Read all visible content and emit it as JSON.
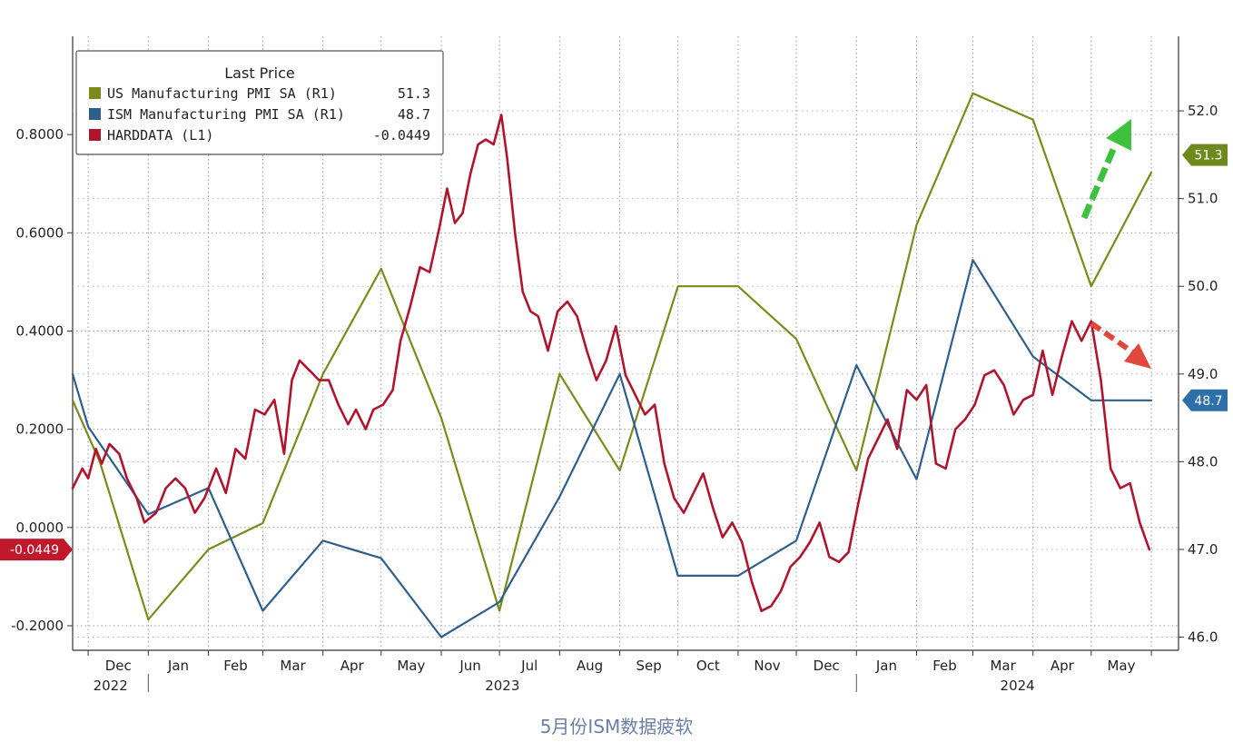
{
  "caption": "5月份ISM数据疲软",
  "colors": {
    "us_pmi": "#7b8a1a",
    "ism_pmi": "#2d5f8c",
    "harddata": "#b0152d",
    "green_arrow": "#3ec13e",
    "red_arrow": "#e2473e",
    "badge_red": "#c0192c",
    "badge_blue": "#2d6fa8",
    "badge_green": "#6e8a1c"
  },
  "legend": {
    "title": "Last Price",
    "items": [
      {
        "label": "US Manufacturing PMI SA  (R1)",
        "value": "51.3",
        "color": "#7b8a1a"
      },
      {
        "label": "ISM Manufacturing PMI SA (R1)",
        "value": "48.7",
        "color": "#2d5f8c"
      },
      {
        "label": "HARDDATA (L1)",
        "value": "-0.0449",
        "color": "#b0152d"
      }
    ]
  },
  "badges": {
    "left": "-0.0449",
    "right_green": "51.3",
    "right_blue": "48.7"
  },
  "chart_data": {
    "type": "line",
    "title": "",
    "x_axis": {
      "unit": "month",
      "start": "2022-11-23",
      "end": "2024-06-15",
      "month_labels": [
        "Dec",
        "Jan",
        "Feb",
        "Mar",
        "Apr",
        "May",
        "Jun",
        "Jul",
        "Aug",
        "Sep",
        "Oct",
        "Nov",
        "Dec",
        "Jan",
        "Feb",
        "Mar",
        "Apr",
        "May"
      ],
      "year_labels": [
        "2022",
        "2023",
        "2024"
      ]
    },
    "y_left": {
      "min": -0.25,
      "max": 1.0,
      "ticks": [
        -0.2,
        0.0,
        0.2,
        0.4,
        0.6,
        0.8
      ],
      "tick_labels": [
        "-0.2000",
        "0.0000",
        "0.2000",
        "0.4000",
        "0.6000",
        "0.8000"
      ]
    },
    "y_right": {
      "min": 45.85,
      "max": 52.85,
      "ticks": [
        46.0,
        47.0,
        48.0,
        49.0,
        50.0,
        51.0,
        52.0
      ],
      "tick_labels": [
        "46.0",
        "47.0",
        "48.0",
        "49.0",
        "50.0",
        "51.0",
        "52.0"
      ]
    },
    "grid": true,
    "legend_position": "top-left",
    "series": [
      {
        "name": "US Manufacturing PMI SA (R1)",
        "axis": "right",
        "points": [
          [
            "2022-11-23",
            48.7
          ],
          [
            "2022-12-07",
            48.0
          ],
          [
            "2023-01-01",
            46.2
          ],
          [
            "2023-02-01",
            47.0
          ],
          [
            "2023-03-01",
            47.3
          ],
          [
            "2023-04-01",
            49.0
          ],
          [
            "2023-05-01",
            50.2
          ],
          [
            "2023-06-01",
            48.5
          ],
          [
            "2023-07-01",
            46.3
          ],
          [
            "2023-08-01",
            49.0
          ],
          [
            "2023-09-01",
            47.9
          ],
          [
            "2023-10-01",
            50.0
          ],
          [
            "2023-11-01",
            50.0
          ],
          [
            "2023-12-01",
            49.4
          ],
          [
            "2024-01-01",
            47.9
          ],
          [
            "2024-02-01",
            50.7
          ],
          [
            "2024-03-01",
            52.2
          ],
          [
            "2024-04-01",
            51.9
          ],
          [
            "2024-05-01",
            50.0
          ],
          [
            "2024-06-01",
            51.3
          ]
        ]
      },
      {
        "name": "ISM Manufacturing PMI SA (R1)",
        "axis": "right",
        "points": [
          [
            "2022-11-23",
            49.0
          ],
          [
            "2022-12-01",
            48.4
          ],
          [
            "2023-01-01",
            47.4
          ],
          [
            "2023-02-01",
            47.7
          ],
          [
            "2023-03-01",
            46.3
          ],
          [
            "2023-04-01",
            47.1
          ],
          [
            "2023-05-01",
            46.9
          ],
          [
            "2023-06-01",
            46.0
          ],
          [
            "2023-07-01",
            46.4
          ],
          [
            "2023-08-01",
            47.6
          ],
          [
            "2023-09-01",
            49.0
          ],
          [
            "2023-10-01",
            46.7
          ],
          [
            "2023-11-01",
            46.7
          ],
          [
            "2023-12-01",
            47.1
          ],
          [
            "2024-01-01",
            49.1
          ],
          [
            "2024-02-01",
            47.8
          ],
          [
            "2024-03-01",
            50.3
          ],
          [
            "2024-04-01",
            49.2
          ],
          [
            "2024-05-01",
            48.7
          ],
          [
            "2024-06-01",
            48.7
          ]
        ]
      },
      {
        "name": "HARDDATA (L1)",
        "axis": "left",
        "points": [
          [
            "2022-11-23",
            0.08
          ],
          [
            "2022-11-28",
            0.12
          ],
          [
            "2022-12-01",
            0.1
          ],
          [
            "2022-12-05",
            0.16
          ],
          [
            "2022-12-08",
            0.13
          ],
          [
            "2022-12-12",
            0.17
          ],
          [
            "2022-12-17",
            0.15
          ],
          [
            "2022-12-21",
            0.1
          ],
          [
            "2022-12-26",
            0.06
          ],
          [
            "2022-12-30",
            0.01
          ],
          [
            "2023-01-05",
            0.03
          ],
          [
            "2023-01-10",
            0.08
          ],
          [
            "2023-01-15",
            0.1
          ],
          [
            "2023-01-20",
            0.08
          ],
          [
            "2023-01-25",
            0.03
          ],
          [
            "2023-01-30",
            0.06
          ],
          [
            "2023-02-05",
            0.12
          ],
          [
            "2023-02-10",
            0.07
          ],
          [
            "2023-02-15",
            0.16
          ],
          [
            "2023-02-20",
            0.14
          ],
          [
            "2023-02-25",
            0.24
          ],
          [
            "2023-03-02",
            0.23
          ],
          [
            "2023-03-07",
            0.26
          ],
          [
            "2023-03-12",
            0.15
          ],
          [
            "2023-03-16",
            0.3
          ],
          [
            "2023-03-20",
            0.34
          ],
          [
            "2023-03-25",
            0.32
          ],
          [
            "2023-03-30",
            0.3
          ],
          [
            "2023-04-04",
            0.3
          ],
          [
            "2023-04-09",
            0.25
          ],
          [
            "2023-04-14",
            0.21
          ],
          [
            "2023-04-18",
            0.24
          ],
          [
            "2023-04-23",
            0.2
          ],
          [
            "2023-04-27",
            0.24
          ],
          [
            "2023-05-02",
            0.25
          ],
          [
            "2023-05-07",
            0.28
          ],
          [
            "2023-05-11",
            0.38
          ],
          [
            "2023-05-16",
            0.45
          ],
          [
            "2023-05-21",
            0.53
          ],
          [
            "2023-05-26",
            0.52
          ],
          [
            "2023-05-31",
            0.61
          ],
          [
            "2023-06-04",
            0.69
          ],
          [
            "2023-06-08",
            0.62
          ],
          [
            "2023-06-12",
            0.64
          ],
          [
            "2023-06-16",
            0.72
          ],
          [
            "2023-06-20",
            0.78
          ],
          [
            "2023-06-24",
            0.79
          ],
          [
            "2023-06-28",
            0.78
          ],
          [
            "2023-07-02",
            0.84
          ],
          [
            "2023-07-05",
            0.75
          ],
          [
            "2023-07-09",
            0.6
          ],
          [
            "2023-07-13",
            0.48
          ],
          [
            "2023-07-17",
            0.44
          ],
          [
            "2023-07-21",
            0.43
          ],
          [
            "2023-07-26",
            0.36
          ],
          [
            "2023-07-31",
            0.44
          ],
          [
            "2023-08-05",
            0.46
          ],
          [
            "2023-08-10",
            0.43
          ],
          [
            "2023-08-15",
            0.36
          ],
          [
            "2023-08-20",
            0.3
          ],
          [
            "2023-08-25",
            0.34
          ],
          [
            "2023-08-30",
            0.41
          ],
          [
            "2023-09-04",
            0.31
          ],
          [
            "2023-09-09",
            0.27
          ],
          [
            "2023-09-14",
            0.23
          ],
          [
            "2023-09-19",
            0.25
          ],
          [
            "2023-09-24",
            0.13
          ],
          [
            "2023-09-29",
            0.06
          ],
          [
            "2023-10-04",
            0.03
          ],
          [
            "2023-10-09",
            0.07
          ],
          [
            "2023-10-14",
            0.11
          ],
          [
            "2023-10-19",
            0.04
          ],
          [
            "2023-10-24",
            -0.02
          ],
          [
            "2023-10-29",
            0.01
          ],
          [
            "2023-11-03",
            -0.03
          ],
          [
            "2023-11-08",
            -0.11
          ],
          [
            "2023-11-13",
            -0.17
          ],
          [
            "2023-11-18",
            -0.16
          ],
          [
            "2023-11-23",
            -0.13
          ],
          [
            "2023-11-28",
            -0.08
          ],
          [
            "2023-12-03",
            -0.06
          ],
          [
            "2023-12-08",
            -0.03
          ],
          [
            "2023-12-13",
            0.01
          ],
          [
            "2023-12-18",
            -0.06
          ],
          [
            "2023-12-23",
            -0.07
          ],
          [
            "2023-12-28",
            -0.05
          ],
          [
            "2024-01-02",
            0.05
          ],
          [
            "2024-01-07",
            0.14
          ],
          [
            "2024-01-12",
            0.18
          ],
          [
            "2024-01-17",
            0.22
          ],
          [
            "2024-01-22",
            0.16
          ],
          [
            "2024-01-27",
            0.28
          ],
          [
            "2024-02-01",
            0.26
          ],
          [
            "2024-02-06",
            0.29
          ],
          [
            "2024-02-11",
            0.13
          ],
          [
            "2024-02-16",
            0.12
          ],
          [
            "2024-02-21",
            0.2
          ],
          [
            "2024-02-26",
            0.22
          ],
          [
            "2024-03-02",
            0.25
          ],
          [
            "2024-03-07",
            0.31
          ],
          [
            "2024-03-12",
            0.32
          ],
          [
            "2024-03-17",
            0.29
          ],
          [
            "2024-03-22",
            0.23
          ],
          [
            "2024-03-27",
            0.26
          ],
          [
            "2024-04-01",
            0.27
          ],
          [
            "2024-04-06",
            0.36
          ],
          [
            "2024-04-11",
            0.27
          ],
          [
            "2024-04-16",
            0.35
          ],
          [
            "2024-04-21",
            0.42
          ],
          [
            "2024-04-26",
            0.38
          ],
          [
            "2024-05-01",
            0.42
          ],
          [
            "2024-05-06",
            0.3
          ],
          [
            "2024-05-11",
            0.12
          ],
          [
            "2024-05-16",
            0.08
          ],
          [
            "2024-05-21",
            0.09
          ],
          [
            "2024-05-26",
            0.01
          ],
          [
            "2024-05-31",
            -0.0449
          ]
        ]
      }
    ]
  }
}
